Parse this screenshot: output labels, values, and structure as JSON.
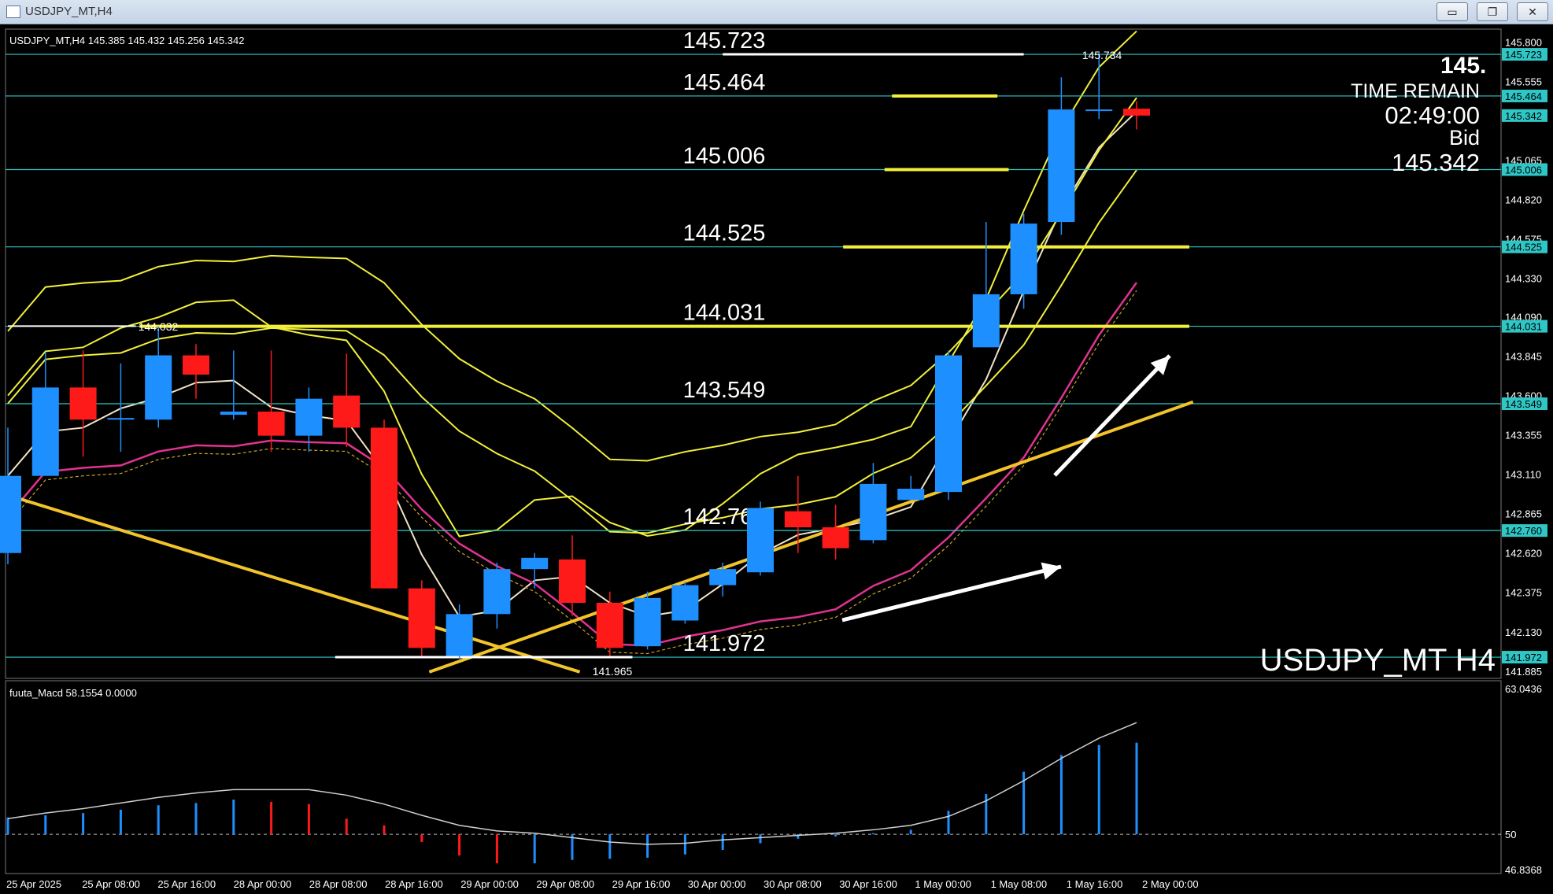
{
  "window": {
    "title": "USDJPY_MT,H4",
    "minimize_glyph": "▭",
    "restore_glyph": "❐",
    "close_glyph": "✕"
  },
  "chart_header": "USDJPY_MT,H4  145.385 145.432 145.256 145.342",
  "info": {
    "price_big": "145.",
    "time_remain_label": "TIME REMAIN",
    "time_remain": "02:49:00",
    "bid_label": "Bid",
    "bid": "145.342",
    "symbol_watermark": "USDJPY_MT H4"
  },
  "level_labels": [
    "145.723",
    "145.464",
    "145.006",
    "144.525",
    "144.031",
    "143.549",
    "142.760",
    "141.972"
  ],
  "extreme_labels": {
    "high": "145.734",
    "low": "141.965",
    "prev_high": "144.032"
  },
  "price_axis": {
    "ticks": [
      "145.800",
      "145.555",
      "145.065",
      "144.820",
      "144.575",
      "144.330",
      "144.090",
      "143.845",
      "143.600",
      "143.355",
      "143.110",
      "142.865",
      "142.620",
      "142.375",
      "142.130",
      "141.885"
    ],
    "tags": [
      "145.723",
      "145.464",
      "145.342",
      "145.006",
      "144.525",
      "144.031",
      "143.549",
      "142.760",
      "141.972"
    ]
  },
  "indicator": {
    "header": "fuuta_Macd 58.1554  0.0000",
    "axis": [
      "63.0436",
      "50",
      "46.8368"
    ]
  },
  "time_axis": [
    "25 Apr 2025",
    "25 Apr 08:00",
    "25 Apr 16:00",
    "28 Apr 00:00",
    "28 Apr 08:00",
    "28 Apr 16:00",
    "29 Apr 00:00",
    "29 Apr 08:00",
    "29 Apr 16:00",
    "30 Apr 00:00",
    "30 Apr 08:00",
    "30 Apr 16:00",
    "1 May 00:00",
    "1 May 08:00",
    "1 May 16:00",
    "2 May 00:00"
  ],
  "colors": {
    "bull": "#1e8fff",
    "bear": "#ff1a1a",
    "level": "#2fc6c6",
    "yellow": "#f2ef3a",
    "trend": "#f2c42a"
  },
  "chart_data": {
    "type": "candlestick",
    "symbol": "USDJPY_MT",
    "timeframe": "H4",
    "ylim": [
      141.84,
      145.88
    ],
    "candles": [
      {
        "o": 142.62,
        "h": 143.4,
        "l": 142.55,
        "c": 143.1
      },
      {
        "o": 143.1,
        "h": 143.87,
        "l": 143.1,
        "c": 143.65
      },
      {
        "o": 143.65,
        "h": 143.88,
        "l": 143.22,
        "c": 143.45
      },
      {
        "o": 143.45,
        "h": 143.8,
        "l": 143.25,
        "c": 143.46
      },
      {
        "o": 143.45,
        "h": 144.03,
        "l": 143.4,
        "c": 143.85
      },
      {
        "o": 143.85,
        "h": 143.92,
        "l": 143.58,
        "c": 143.73
      },
      {
        "o": 143.48,
        "h": 143.88,
        "l": 143.45,
        "c": 143.5
      },
      {
        "o": 143.5,
        "h": 143.88,
        "l": 143.25,
        "c": 143.35
      },
      {
        "o": 143.35,
        "h": 143.65,
        "l": 143.25,
        "c": 143.58
      },
      {
        "o": 143.6,
        "h": 143.86,
        "l": 143.28,
        "c": 143.4
      },
      {
        "o": 143.4,
        "h": 143.45,
        "l": 142.4,
        "c": 142.4
      },
      {
        "o": 142.4,
        "h": 142.45,
        "l": 141.98,
        "c": 142.03
      },
      {
        "o": 141.98,
        "h": 142.3,
        "l": 141.96,
        "c": 142.24
      },
      {
        "o": 142.24,
        "h": 142.56,
        "l": 142.15,
        "c": 142.52
      },
      {
        "o": 142.52,
        "h": 142.62,
        "l": 142.4,
        "c": 142.59
      },
      {
        "o": 142.58,
        "h": 142.73,
        "l": 142.23,
        "c": 142.31
      },
      {
        "o": 142.31,
        "h": 142.38,
        "l": 141.98,
        "c": 142.03
      },
      {
        "o": 142.04,
        "h": 142.38,
        "l": 142.02,
        "c": 142.34
      },
      {
        "o": 142.2,
        "h": 142.44,
        "l": 142.18,
        "c": 142.42
      },
      {
        "o": 142.42,
        "h": 142.56,
        "l": 142.35,
        "c": 142.52
      },
      {
        "o": 142.5,
        "h": 142.94,
        "l": 142.48,
        "c": 142.9
      },
      {
        "o": 142.88,
        "h": 143.1,
        "l": 142.62,
        "c": 142.78
      },
      {
        "o": 142.78,
        "h": 142.92,
        "l": 142.58,
        "c": 142.65
      },
      {
        "o": 142.7,
        "h": 143.18,
        "l": 142.68,
        "c": 143.05
      },
      {
        "o": 142.95,
        "h": 143.1,
        "l": 142.95,
        "c": 143.02
      },
      {
        "o": 143.0,
        "h": 143.88,
        "l": 142.95,
        "c": 143.85
      },
      {
        "o": 143.9,
        "h": 144.68,
        "l": 143.9,
        "c": 144.23
      },
      {
        "o": 144.23,
        "h": 144.73,
        "l": 144.14,
        "c": 144.67
      },
      {
        "o": 144.68,
        "h": 145.58,
        "l": 144.6,
        "c": 145.38
      },
      {
        "o": 145.38,
        "h": 145.734,
        "l": 145.32,
        "c": 145.38
      },
      {
        "o": 145.385,
        "h": 145.432,
        "l": 145.256,
        "c": 145.342
      }
    ],
    "levels": [
      145.723,
      145.464,
      145.006,
      144.525,
      144.031,
      143.549,
      142.76,
      141.972
    ],
    "macd_histogram": [
      51.5,
      51.7,
      51.9,
      52.2,
      52.6,
      52.8,
      53.1,
      52.9,
      52.7,
      51.4,
      50.8,
      49.3,
      48.1,
      47.4,
      47.4,
      47.7,
      47.8,
      47.9,
      48.2,
      48.6,
      49.2,
      49.6,
      49.8,
      50.1,
      50.4,
      52.1,
      53.6,
      55.6,
      57.1,
      58.0,
      58.2
    ],
    "macd_signal": [
      51.4,
      51.9,
      52.3,
      52.8,
      53.3,
      53.7,
      54.0,
      54.0,
      54.0,
      53.5,
      52.7,
      51.7,
      50.8,
      50.3,
      50.1,
      49.7,
      49.3,
      49.1,
      49.2,
      49.5,
      49.7,
      49.9,
      50.1,
      50.4,
      50.8,
      51.6,
      53.0,
      54.8,
      56.8,
      58.6,
      60.0
    ]
  }
}
